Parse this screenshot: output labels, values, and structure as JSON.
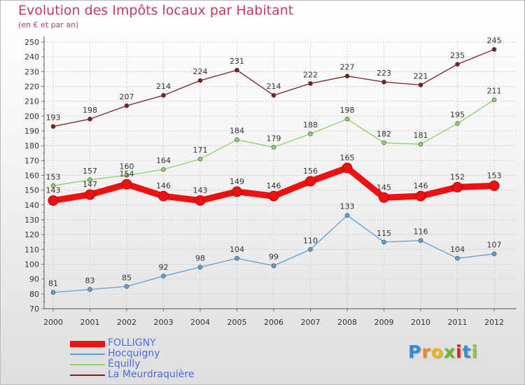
{
  "chart_data": {
    "type": "line",
    "title": "Evolution des Impôts locaux par Habitant",
    "subtitle": "(en € et par an)",
    "xlabel": "",
    "ylabel": "",
    "ylim": [
      70,
      250
    ],
    "ytick_step": 10,
    "grid": true,
    "legend_position": "bottom-left",
    "categories": [
      "2000",
      "2001",
      "2002",
      "2003",
      "2004",
      "2005",
      "2006",
      "2007",
      "2008",
      "2009",
      "2010",
      "2011",
      "2012"
    ],
    "series": [
      {
        "name": "La Meurdraquière",
        "color": "#7a1f23",
        "values": [
          193,
          198,
          207,
          214,
          224,
          231,
          214,
          222,
          227,
          223,
          221,
          235,
          245
        ]
      },
      {
        "name": "Équilly",
        "color": "#8fd06a",
        "values": [
          153,
          157,
          160,
          164,
          171,
          184,
          179,
          188,
          198,
          182,
          181,
          195,
          211
        ]
      },
      {
        "name": "Hocquigny",
        "color": "#5f9fd3",
        "values": [
          81,
          83,
          85,
          92,
          98,
          104,
          99,
          110,
          133,
          115,
          116,
          104,
          107
        ]
      },
      {
        "name": "FOLLIGNY",
        "color": "#ee1111",
        "values": [
          143,
          147,
          154,
          146,
          143,
          149,
          146,
          156,
          165,
          145,
          146,
          152,
          153
        ]
      }
    ]
  },
  "legend": {
    "items": [
      {
        "label": "FOLLIGNY",
        "color": "#ee1111"
      },
      {
        "label": "Hocquigny",
        "color": "#5f9fd3"
      },
      {
        "label": "Équilly",
        "color": "#8fd06a"
      },
      {
        "label": "La Meurdraquière",
        "color": "#7a1f23"
      }
    ]
  },
  "logo": {
    "letters": [
      "P",
      "r",
      "o",
      "x",
      "i",
      "t",
      "i"
    ],
    "colors": [
      "#2e8fd8",
      "#f08a1c",
      "#f2b619",
      "#6bb82c",
      "#e2231a",
      "#2e8fd8",
      "#8cc63f"
    ]
  }
}
